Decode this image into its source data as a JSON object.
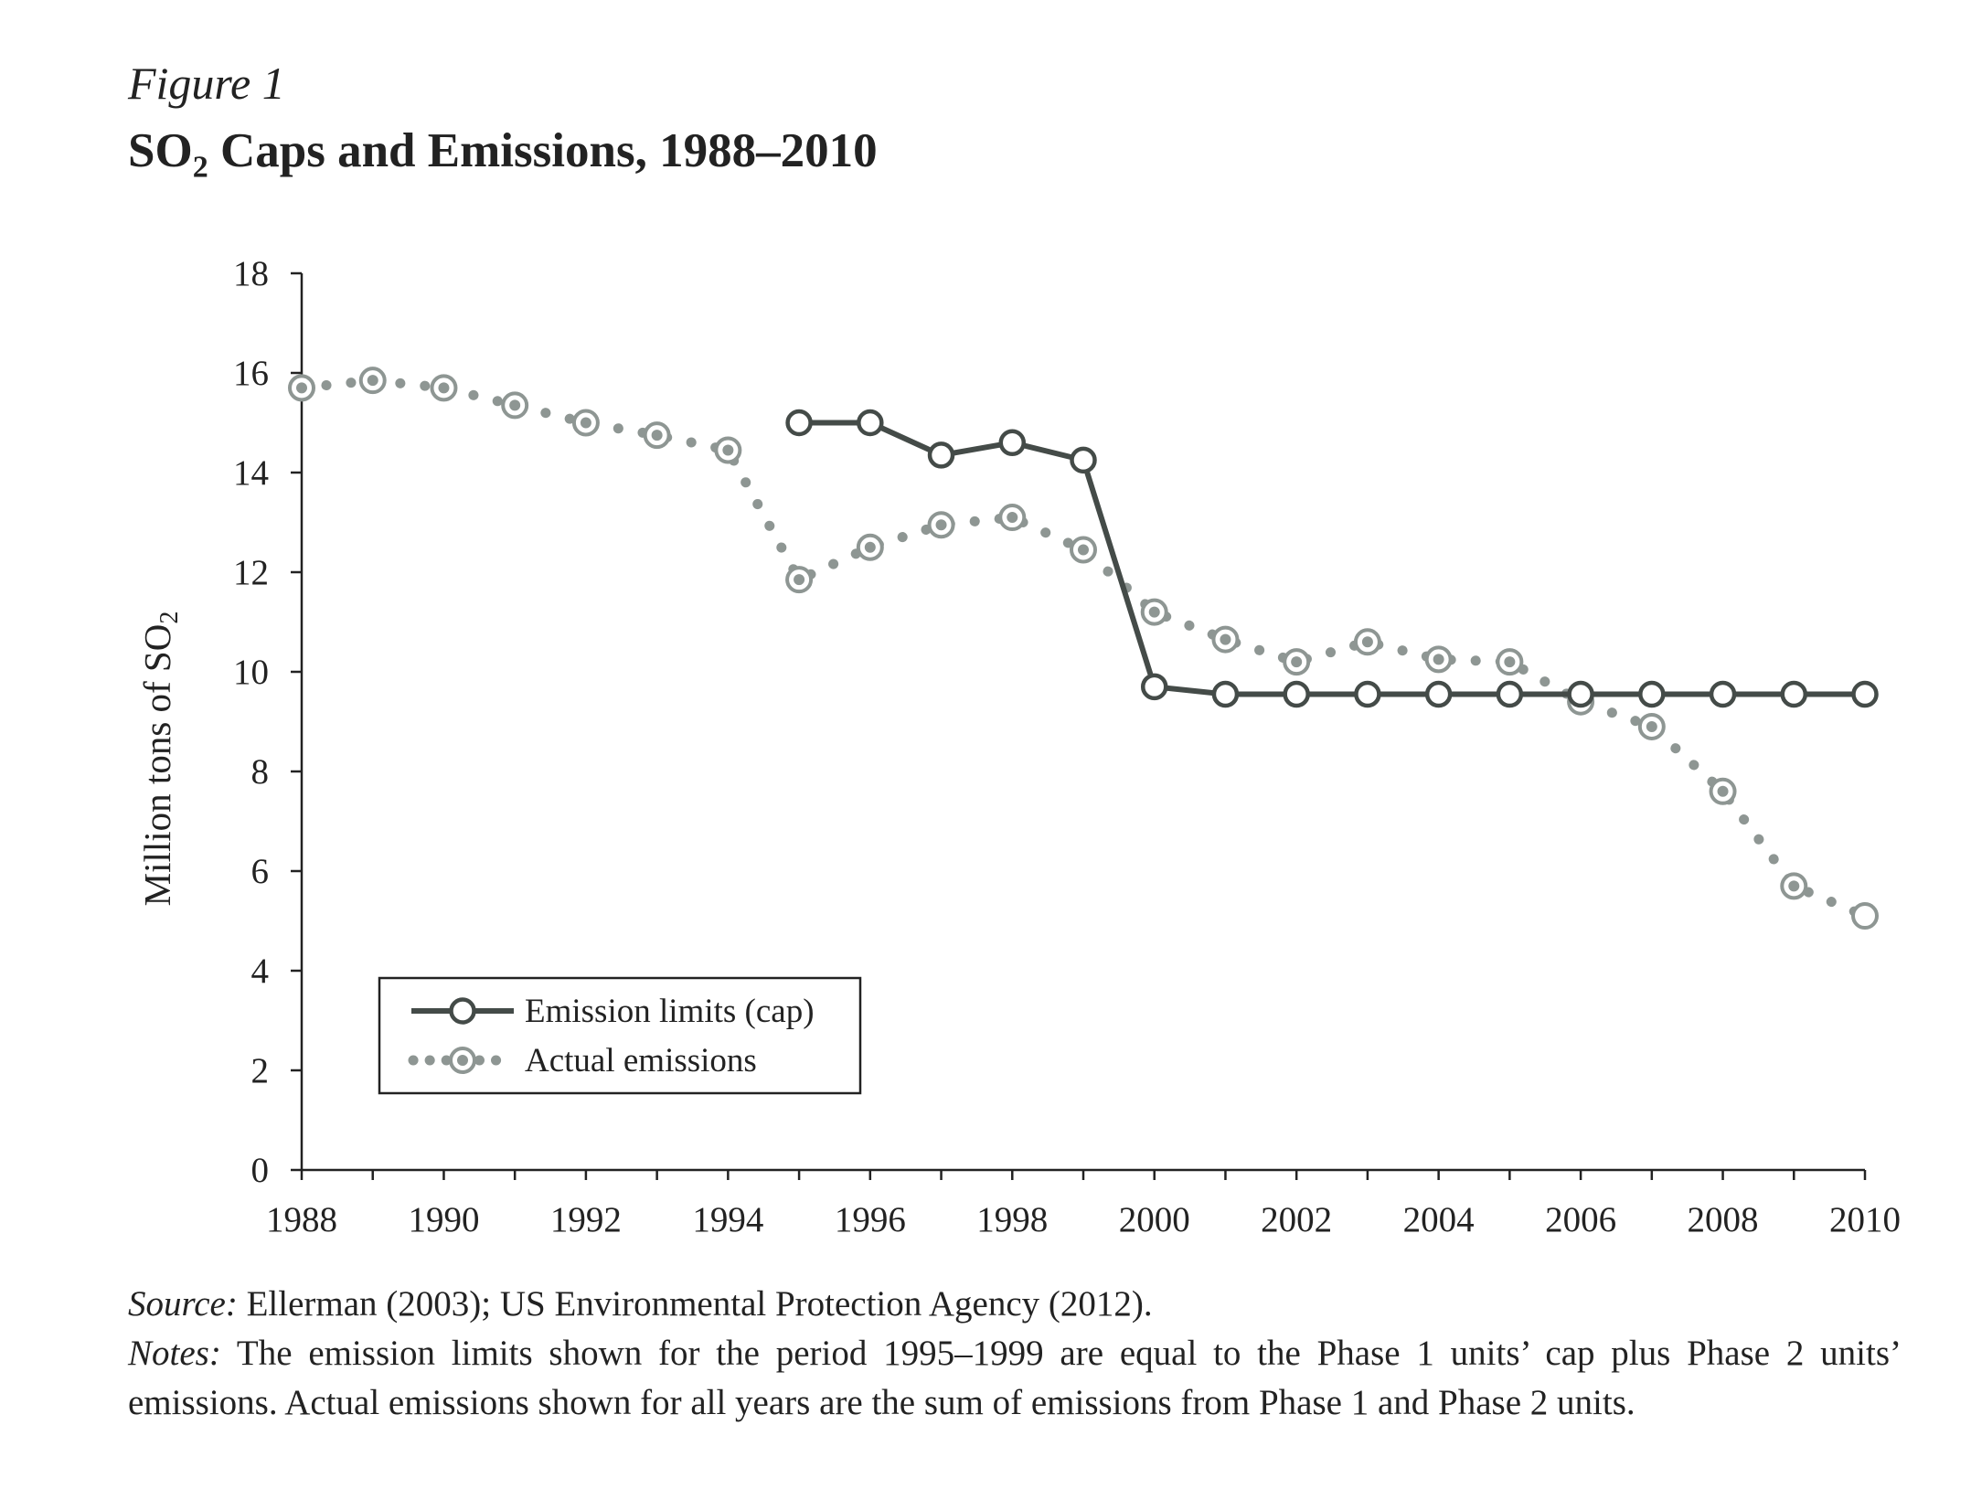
{
  "figure": {
    "label": "Figure 1",
    "title_main": "SO",
    "title_sub": "2",
    "title_rest": " Caps and Emissions, 1988–2010"
  },
  "chart_data": {
    "type": "line",
    "ylabel_main": "Million tons of SO",
    "ylabel_sub": "2",
    "xlim": [
      1988,
      2010
    ],
    "ylim": [
      0,
      18
    ],
    "x_ticks": [
      "1988",
      "1990",
      "1992",
      "1994",
      "1996",
      "1998",
      "2000",
      "2002",
      "2004",
      "2006",
      "2008",
      "2010"
    ],
    "y_ticks": [
      "0",
      "2",
      "4",
      "6",
      "8",
      "10",
      "12",
      "14",
      "16",
      "18"
    ],
    "grid": false,
    "legend_position": "bottom-left",
    "series": [
      {
        "name": "Emission limits (cap)",
        "style": "solid-line-open-circles",
        "color": "#444b48",
        "x": [
          1995,
          1996,
          1997,
          1998,
          1999,
          2000,
          2001,
          2002,
          2003,
          2004,
          2005,
          2006,
          2007,
          2008,
          2009,
          2010
        ],
        "y": [
          15.0,
          15.0,
          14.35,
          14.6,
          14.25,
          9.7,
          9.55,
          9.55,
          9.55,
          9.55,
          9.55,
          9.55,
          9.55,
          9.55,
          9.55,
          9.55
        ]
      },
      {
        "name": "Actual emissions",
        "style": "dotted-line-double-circles",
        "color": "#8e9693",
        "x": [
          1988,
          1989,
          1990,
          1991,
          1992,
          1993,
          1994,
          1995,
          1996,
          1997,
          1998,
          1999,
          2000,
          2001,
          2002,
          2003,
          2004,
          2005,
          2006,
          2007,
          2008,
          2009,
          2010
        ],
        "y": [
          15.7,
          15.85,
          15.7,
          15.35,
          15.0,
          14.75,
          14.45,
          11.85,
          12.5,
          12.95,
          13.1,
          12.45,
          11.2,
          10.65,
          10.2,
          10.6,
          10.25,
          10.2,
          9.4,
          8.9,
          7.6,
          5.7,
          5.1
        ]
      }
    ]
  },
  "footnote": {
    "source_label": "Source:",
    "source_text": " Ellerman (2003); US Environmental Protection Agency (2012).",
    "notes_label": "Notes:",
    "notes_text": " The emission limits shown for the period 1995–1999 are equal to the Phase 1 units’ cap plus Phase 2 units’ emissions. Actual emissions shown for all years are the sum of emissions from Phase 1 and Phase 2 units."
  }
}
